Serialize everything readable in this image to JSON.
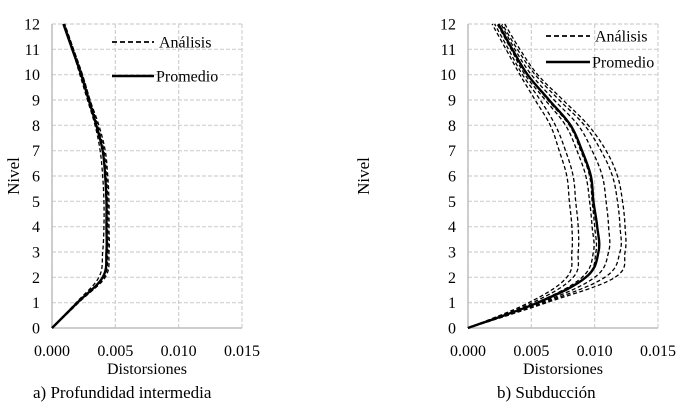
{
  "chart_data": [
    {
      "type": "line",
      "title": "a) Profundidad intermedia",
      "xlabel": "Distorsiones",
      "ylabel": "Nivel",
      "xlim": [
        0,
        0.015
      ],
      "ylim": [
        0,
        12
      ],
      "x_ticks": [
        "0.000",
        "0.005",
        "0.010",
        "0.015"
      ],
      "y_ticks": [
        "0",
        "1",
        "2",
        "3",
        "4",
        "5",
        "6",
        "7",
        "8",
        "9",
        "10",
        "11",
        "12"
      ],
      "grid": true,
      "legend": {
        "position": "upper-right-inside",
        "entries": [
          "Análisis",
          "Promedio"
        ]
      },
      "levels": [
        0,
        1,
        2,
        3,
        4,
        5,
        6,
        7,
        8,
        9,
        10,
        11,
        12
      ],
      "series": [
        {
          "name": "Análisis",
          "style": "dashed",
          "values": [
            0,
            0.0019,
            0.0037,
            0.004,
            0.0041,
            0.0041,
            0.004,
            0.0038,
            0.0034,
            0.0028,
            0.0022,
            0.0016,
            0.0009
          ]
        },
        {
          "name": "Análisis",
          "style": "dashed",
          "values": [
            0,
            0.002,
            0.004,
            0.0043,
            0.0043,
            0.0043,
            0.0042,
            0.004,
            0.0035,
            0.0029,
            0.0023,
            0.0016,
            0.0009
          ]
        },
        {
          "name": "Análisis",
          "style": "dashed",
          "values": [
            0,
            0.0021,
            0.0041,
            0.0044,
            0.0044,
            0.0044,
            0.0043,
            0.0041,
            0.0036,
            0.003,
            0.0024,
            0.0017,
            0.001
          ]
        },
        {
          "name": "Análisis",
          "style": "dashed",
          "values": [
            0,
            0.002,
            0.0042,
            0.0045,
            0.0045,
            0.0045,
            0.0044,
            0.0042,
            0.0037,
            0.003,
            0.0024,
            0.0017,
            0.001
          ]
        },
        {
          "name": "Promedio",
          "style": "solid",
          "values": [
            0,
            0.002,
            0.004,
            0.0043,
            0.0043,
            0.0043,
            0.0042,
            0.004,
            0.0035,
            0.0029,
            0.0023,
            0.0016,
            0.0009
          ]
        }
      ]
    },
    {
      "type": "line",
      "title": "b) Subducción",
      "xlabel": "Distorsiones",
      "ylabel": "Nivel",
      "xlim": [
        0,
        0.015
      ],
      "ylim": [
        0,
        12
      ],
      "x_ticks": [
        "0.000",
        "0.005",
        "0.010",
        "0.015"
      ],
      "y_ticks": [
        "0",
        "1",
        "2",
        "3",
        "4",
        "5",
        "6",
        "7",
        "8",
        "9",
        "10",
        "11",
        "12"
      ],
      "grid": true,
      "legend": {
        "position": "upper-right-inside",
        "entries": [
          "Análisis",
          "Promedio"
        ]
      },
      "levels": [
        0,
        1,
        2,
        3,
        4,
        5,
        6,
        7,
        8,
        9,
        10,
        11,
        12
      ],
      "series": [
        {
          "name": "Análisis",
          "style": "dashed",
          "values": [
            0,
            0.0048,
            0.0078,
            0.0082,
            0.0082,
            0.008,
            0.0078,
            0.0072,
            0.0065,
            0.0053,
            0.0041,
            0.003,
            0.0019
          ]
        },
        {
          "name": "Análisis",
          "style": "dashed",
          "values": [
            0,
            0.0051,
            0.0083,
            0.0087,
            0.0087,
            0.0085,
            0.0083,
            0.0077,
            0.0069,
            0.0057,
            0.0043,
            0.0032,
            0.0021
          ]
        },
        {
          "name": "Análisis",
          "style": "dashed",
          "values": [
            0,
            0.0054,
            0.009,
            0.0099,
            0.0098,
            0.0096,
            0.0093,
            0.0086,
            0.0077,
            0.0061,
            0.0045,
            0.0034,
            0.0023
          ]
        },
        {
          "name": "Análisis",
          "style": "dashed",
          "values": [
            0,
            0.0056,
            0.0093,
            0.0101,
            0.01,
            0.0098,
            0.0096,
            0.0089,
            0.008,
            0.0063,
            0.0047,
            0.0035,
            0.0024
          ]
        },
        {
          "name": "Análisis",
          "style": "dashed",
          "values": [
            0,
            0.0058,
            0.01,
            0.0111,
            0.0111,
            0.0109,
            0.0106,
            0.0098,
            0.0087,
            0.0068,
            0.005,
            0.0037,
            0.0026
          ]
        },
        {
          "name": "Análisis",
          "style": "dashed",
          "values": [
            0,
            0.006,
            0.0108,
            0.012,
            0.012,
            0.0118,
            0.0114,
            0.0105,
            0.0092,
            0.0072,
            0.0053,
            0.0039,
            0.0027
          ]
        },
        {
          "name": "Análisis",
          "style": "dashed",
          "values": [
            0,
            0.0062,
            0.0116,
            0.0124,
            0.0124,
            0.0122,
            0.0118,
            0.0109,
            0.0095,
            0.0075,
            0.0055,
            0.0041,
            0.0029
          ]
        },
        {
          "name": "Promedio",
          "style": "solid",
          "values": [
            0,
            0.0055,
            0.0093,
            0.0103,
            0.0102,
            0.0099,
            0.0097,
            0.009,
            0.0081,
            0.0064,
            0.0047,
            0.0035,
            0.0024
          ]
        }
      ]
    }
  ]
}
